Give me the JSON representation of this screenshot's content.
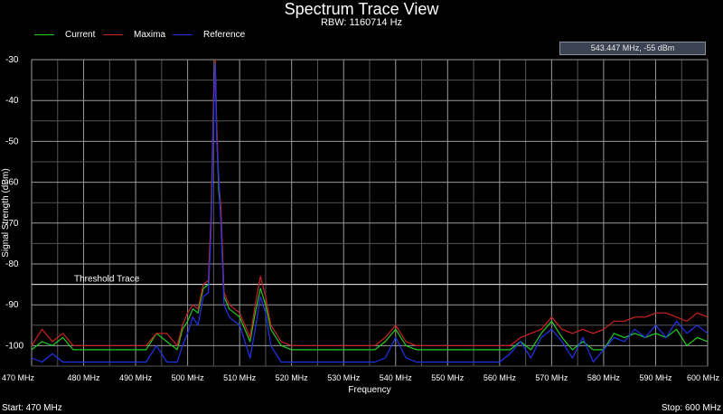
{
  "header": {
    "title": "Spectrum Trace View",
    "subtitle": "RBW: 1160714 Hz"
  },
  "marker_readout": "543.447 MHz,   -55 dBm",
  "footer": {
    "start": "Start: 470 MHz",
    "stop": "Stop: 600 MHz"
  },
  "chart_data": {
    "type": "line",
    "title": "Spectrum Trace View",
    "subtitle": "RBW: 1160714 Hz",
    "xlabel": "Frequency",
    "ylabel": "Signal Strength (dBm)",
    "x_unit": "MHz",
    "xlim": [
      470,
      600
    ],
    "ylim": [
      -105,
      -30
    ],
    "x_ticks": [
      470,
      480,
      490,
      500,
      510,
      520,
      530,
      540,
      550,
      560,
      570,
      580,
      590,
      600
    ],
    "x_tick_labels": [
      "470 MHz",
      "480 MHz",
      "490 MHz",
      "500 MHz",
      "510 MHz",
      "520 MHz",
      "530 MHz",
      "540 MHz",
      "550 MHz",
      "560 MHz",
      "570 MHz",
      "580 MHz",
      "590 MHz",
      "600 MHz"
    ],
    "y_ticks": [
      -30,
      -40,
      -50,
      -60,
      -70,
      -80,
      -90,
      -100
    ],
    "y_tick_labels": [
      "-30",
      "-40",
      "-50",
      "-60",
      "-70",
      "-80",
      "-90",
      "-100"
    ],
    "grid": true,
    "legend_position": "top-left",
    "threshold": {
      "label": "Threshold Trace",
      "value": -85
    },
    "series": [
      {
        "name": "Current",
        "color": "#22cc22",
        "x": [
          470,
          472,
          474,
          476,
          478,
          480,
          482,
          484,
          486,
          488,
          490,
          492,
          494,
          496,
          498,
          499,
          500,
          501,
          502,
          503,
          504,
          504.5,
          505,
          505.3,
          505.6,
          506,
          506.4,
          507,
          508,
          509,
          510,
          512,
          513,
          514,
          515,
          516,
          518,
          520,
          522,
          524,
          526,
          528,
          530,
          532,
          534,
          536,
          538,
          540,
          542,
          544,
          546,
          548,
          550,
          552,
          554,
          556,
          558,
          560,
          562,
          564,
          566,
          568,
          570,
          572,
          574,
          576,
          578,
          580,
          582,
          584,
          586,
          588,
          590,
          592,
          594,
          596,
          598,
          600
        ],
        "y": [
          -101,
          -99,
          -100,
          -98,
          -101,
          -101,
          -101,
          -101,
          -101,
          -101,
          -101,
          -101,
          -97,
          -99,
          -101,
          -96,
          -94,
          -91,
          -92,
          -86,
          -85,
          -70,
          -40,
          -30,
          -48,
          -62,
          -68,
          -88,
          -91,
          -92,
          -93,
          -99,
          -92,
          -86,
          -90,
          -96,
          -100,
          -101,
          -101,
          -101,
          -101,
          -101,
          -101,
          -101,
          -101,
          -101,
          -99,
          -96,
          -100,
          -101,
          -101,
          -101,
          -101,
          -101,
          -101,
          -101,
          -101,
          -101,
          -101,
          -99,
          -101,
          -97,
          -94,
          -98,
          -101,
          -99,
          -101,
          -101,
          -97,
          -98,
          -97,
          -98,
          -97,
          -98,
          -96,
          -100,
          -98,
          -99
        ]
      },
      {
        "name": "Maxima",
        "color": "#cc2222",
        "x": [
          470,
          472,
          474,
          476,
          478,
          480,
          482,
          484,
          486,
          488,
          490,
          492,
          494,
          496,
          498,
          499,
          500,
          501,
          502,
          503,
          504,
          504.5,
          505,
          505.3,
          505.6,
          506,
          506.4,
          507,
          508,
          509,
          510,
          512,
          513,
          514,
          515,
          516,
          518,
          520,
          522,
          524,
          526,
          528,
          530,
          532,
          534,
          536,
          538,
          540,
          542,
          544,
          546,
          548,
          550,
          552,
          554,
          556,
          558,
          560,
          562,
          564,
          566,
          568,
          570,
          572,
          574,
          576,
          578,
          580,
          582,
          584,
          586,
          588,
          590,
          592,
          594,
          596,
          598,
          600
        ],
        "y": [
          -100,
          -96,
          -99,
          -97,
          -100,
          -100,
          -100,
          -100,
          -100,
          -100,
          -100,
          -100,
          -97,
          -97,
          -100,
          -95,
          -92,
          -90,
          -91,
          -85,
          -84,
          -68,
          -38,
          -30,
          -46,
          -60,
          -66,
          -87,
          -90,
          -91,
          -92,
          -98,
          -90,
          -83,
          -88,
          -95,
          -99,
          -100,
          -100,
          -100,
          -100,
          -100,
          -100,
          -100,
          -100,
          -100,
          -98,
          -95,
          -99,
          -100,
          -100,
          -100,
          -100,
          -100,
          -100,
          -100,
          -100,
          -100,
          -100,
          -98,
          -97,
          -96,
          -93,
          -96,
          -97,
          -96,
          -97,
          -96,
          -94,
          -94,
          -93,
          -93,
          -92,
          -92,
          -93,
          -94,
          -92,
          -93
        ]
      },
      {
        "name": "Reference",
        "color": "#2233ee",
        "x": [
          470,
          472,
          474,
          476,
          478,
          480,
          482,
          484,
          486,
          488,
          490,
          492,
          494,
          496,
          498,
          499,
          500,
          501,
          502,
          503,
          504,
          504.5,
          505,
          505.3,
          505.6,
          506,
          506.4,
          507,
          508,
          509,
          510,
          512,
          513,
          514,
          515,
          516,
          518,
          520,
          522,
          524,
          526,
          528,
          530,
          532,
          534,
          536,
          538,
          540,
          542,
          544,
          546,
          548,
          550,
          552,
          554,
          556,
          558,
          560,
          562,
          564,
          566,
          568,
          570,
          572,
          574,
          576,
          578,
          580,
          582,
          584,
          586,
          588,
          590,
          592,
          594,
          596,
          598,
          600
        ],
        "y": [
          -103,
          -104,
          -102,
          -104,
          -104,
          -104,
          -104,
          -104,
          -104,
          -104,
          -104,
          -104,
          -100,
          -104,
          -104,
          -100,
          -97,
          -93,
          -95,
          -88,
          -87,
          -72,
          -42,
          -31,
          -50,
          -59,
          -70,
          -90,
          -93,
          -94,
          -95,
          -103,
          -96,
          -88,
          -92,
          -100,
          -104,
          -104,
          -104,
          -104,
          -104,
          -104,
          -104,
          -104,
          -104,
          -104,
          -103,
          -98,
          -103,
          -104,
          -104,
          -104,
          -104,
          -104,
          -104,
          -104,
          -104,
          -104,
          -102,
          -99,
          -103,
          -98,
          -96,
          -99,
          -103,
          -98,
          -104,
          -101,
          -98,
          -99,
          -96,
          -98,
          -95,
          -98,
          -94,
          -97,
          -95,
          -97
        ]
      }
    ]
  }
}
